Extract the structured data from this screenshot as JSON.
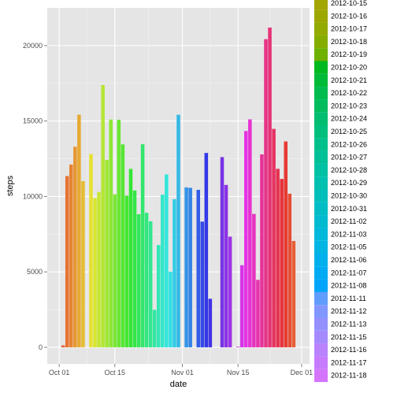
{
  "chart_data": {
    "type": "bar",
    "xlabel": "date",
    "ylabel": "steps",
    "ylim": [
      -1100,
      22500
    ],
    "xlim": [
      "2012-09-28",
      "2012-12-03"
    ],
    "x_ticks": [
      {
        "date": "2012-10-01",
        "label": "Oct 01"
      },
      {
        "date": "2012-10-15",
        "label": "Oct 15"
      },
      {
        "date": "2012-11-01",
        "label": "Nov 01"
      },
      {
        "date": "2012-11-15",
        "label": "Nov 15"
      },
      {
        "date": "2012-12-01",
        "label": "Dec 01"
      }
    ],
    "y_ticks": [
      0,
      5000,
      10000,
      15000,
      20000
    ],
    "y_tick_labels": [
      "0",
      "5000",
      "10000",
      "15000",
      "20000"
    ],
    "grid": true,
    "legend_placement": "right",
    "bars": [
      {
        "date": "2012-10-02",
        "steps": 126
      },
      {
        "date": "2012-10-03",
        "steps": 11352
      },
      {
        "date": "2012-10-04",
        "steps": 12116
      },
      {
        "date": "2012-10-05",
        "steps": 13294
      },
      {
        "date": "2012-10-06",
        "steps": 15420
      },
      {
        "date": "2012-10-07",
        "steps": 11015
      },
      {
        "date": "2012-10-09",
        "steps": 12811
      },
      {
        "date": "2012-10-10",
        "steps": 9900
      },
      {
        "date": "2012-10-11",
        "steps": 10304
      },
      {
        "date": "2012-10-12",
        "steps": 17382
      },
      {
        "date": "2012-10-13",
        "steps": 12426
      },
      {
        "date": "2012-10-14",
        "steps": 15098
      },
      {
        "date": "2012-10-15",
        "steps": 10139
      },
      {
        "date": "2012-10-16",
        "steps": 15084
      },
      {
        "date": "2012-10-17",
        "steps": 13452
      },
      {
        "date": "2012-10-18",
        "steps": 10056
      },
      {
        "date": "2012-10-19",
        "steps": 11829
      },
      {
        "date": "2012-10-20",
        "steps": 10395
      },
      {
        "date": "2012-10-21",
        "steps": 8821
      },
      {
        "date": "2012-10-22",
        "steps": 13460
      },
      {
        "date": "2012-10-23",
        "steps": 8918
      },
      {
        "date": "2012-10-24",
        "steps": 8355
      },
      {
        "date": "2012-10-25",
        "steps": 2492
      },
      {
        "date": "2012-10-26",
        "steps": 6778
      },
      {
        "date": "2012-10-27",
        "steps": 10119
      },
      {
        "date": "2012-10-28",
        "steps": 11458
      },
      {
        "date": "2012-10-29",
        "steps": 5018
      },
      {
        "date": "2012-10-30",
        "steps": 9819
      },
      {
        "date": "2012-10-31",
        "steps": 15414
      },
      {
        "date": "2012-11-02",
        "steps": 10600
      },
      {
        "date": "2012-11-03",
        "steps": 10571
      },
      {
        "date": "2012-11-05",
        "steps": 10439
      },
      {
        "date": "2012-11-06",
        "steps": 8334
      },
      {
        "date": "2012-11-07",
        "steps": 12883
      },
      {
        "date": "2012-11-08",
        "steps": 3219
      },
      {
        "date": "2012-11-11",
        "steps": 12608
      },
      {
        "date": "2012-11-12",
        "steps": 10765
      },
      {
        "date": "2012-11-13",
        "steps": 7336
      },
      {
        "date": "2012-11-15",
        "steps": 41
      },
      {
        "date": "2012-11-16",
        "steps": 5441
      },
      {
        "date": "2012-11-17",
        "steps": 14339
      },
      {
        "date": "2012-11-18",
        "steps": 15110
      },
      {
        "date": "2012-11-19",
        "steps": 8841
      },
      {
        "date": "2012-11-20",
        "steps": 4472
      },
      {
        "date": "2012-11-21",
        "steps": 12787
      },
      {
        "date": "2012-11-22",
        "steps": 20427
      },
      {
        "date": "2012-11-23",
        "steps": 21194
      },
      {
        "date": "2012-11-24",
        "steps": 14478
      },
      {
        "date": "2012-11-25",
        "steps": 11834
      },
      {
        "date": "2012-11-26",
        "steps": 11162
      },
      {
        "date": "2012-11-27",
        "steps": 13646
      },
      {
        "date": "2012-11-28",
        "steps": 10183
      },
      {
        "date": "2012-11-29",
        "steps": 7047
      }
    ],
    "legend": {
      "items": [
        {
          "label": "2012-10-15",
          "color": "#a3a500"
        },
        {
          "label": "2012-10-16",
          "color": "#9da700"
        },
        {
          "label": "2012-10-17",
          "color": "#93aa00"
        },
        {
          "label": "2012-10-18",
          "color": "#85ad00"
        },
        {
          "label": "2012-10-19",
          "color": "#6eb100"
        },
        {
          "label": "2012-10-20",
          "color": "#00b81f"
        },
        {
          "label": "2012-10-21",
          "color": "#00ba38"
        },
        {
          "label": "2012-10-22",
          "color": "#00bb4e"
        },
        {
          "label": "2012-10-23",
          "color": "#00bc5f"
        },
        {
          "label": "2012-10-24",
          "color": "#00bd70"
        },
        {
          "label": "2012-10-25",
          "color": "#00bf7d"
        },
        {
          "label": "2012-10-26",
          "color": "#00c08b"
        },
        {
          "label": "2012-10-27",
          "color": "#00c097"
        },
        {
          "label": "2012-10-28",
          "color": "#00c1a3"
        },
        {
          "label": "2012-10-29",
          "color": "#00c0af"
        },
        {
          "label": "2012-10-30",
          "color": "#00bfbb"
        },
        {
          "label": "2012-10-31",
          "color": "#00bdc5"
        },
        {
          "label": "2012-11-02",
          "color": "#00bbd0"
        },
        {
          "label": "2012-11-03",
          "color": "#00b8da"
        },
        {
          "label": "2012-11-05",
          "color": "#00b4e3"
        },
        {
          "label": "2012-11-06",
          "color": "#00b0ec"
        },
        {
          "label": "2012-11-07",
          "color": "#00abf4"
        },
        {
          "label": "2012-11-08",
          "color": "#00a5fb"
        },
        {
          "label": "2012-11-11",
          "color": "#619cff"
        },
        {
          "label": "2012-11-12",
          "color": "#8197ff"
        },
        {
          "label": "2012-11-13",
          "color": "#9590ff"
        },
        {
          "label": "2012-11-15",
          "color": "#a58aff"
        },
        {
          "label": "2012-11-16",
          "color": "#b983ff"
        },
        {
          "label": "2012-11-17",
          "color": "#c77cff"
        },
        {
          "label": "2012-11-18",
          "color": "#d575fe"
        }
      ]
    },
    "colors": {
      "panel": "#e5e5e5",
      "grid_major": "#ffffff",
      "grid_minor": "#f2f2f2"
    }
  }
}
